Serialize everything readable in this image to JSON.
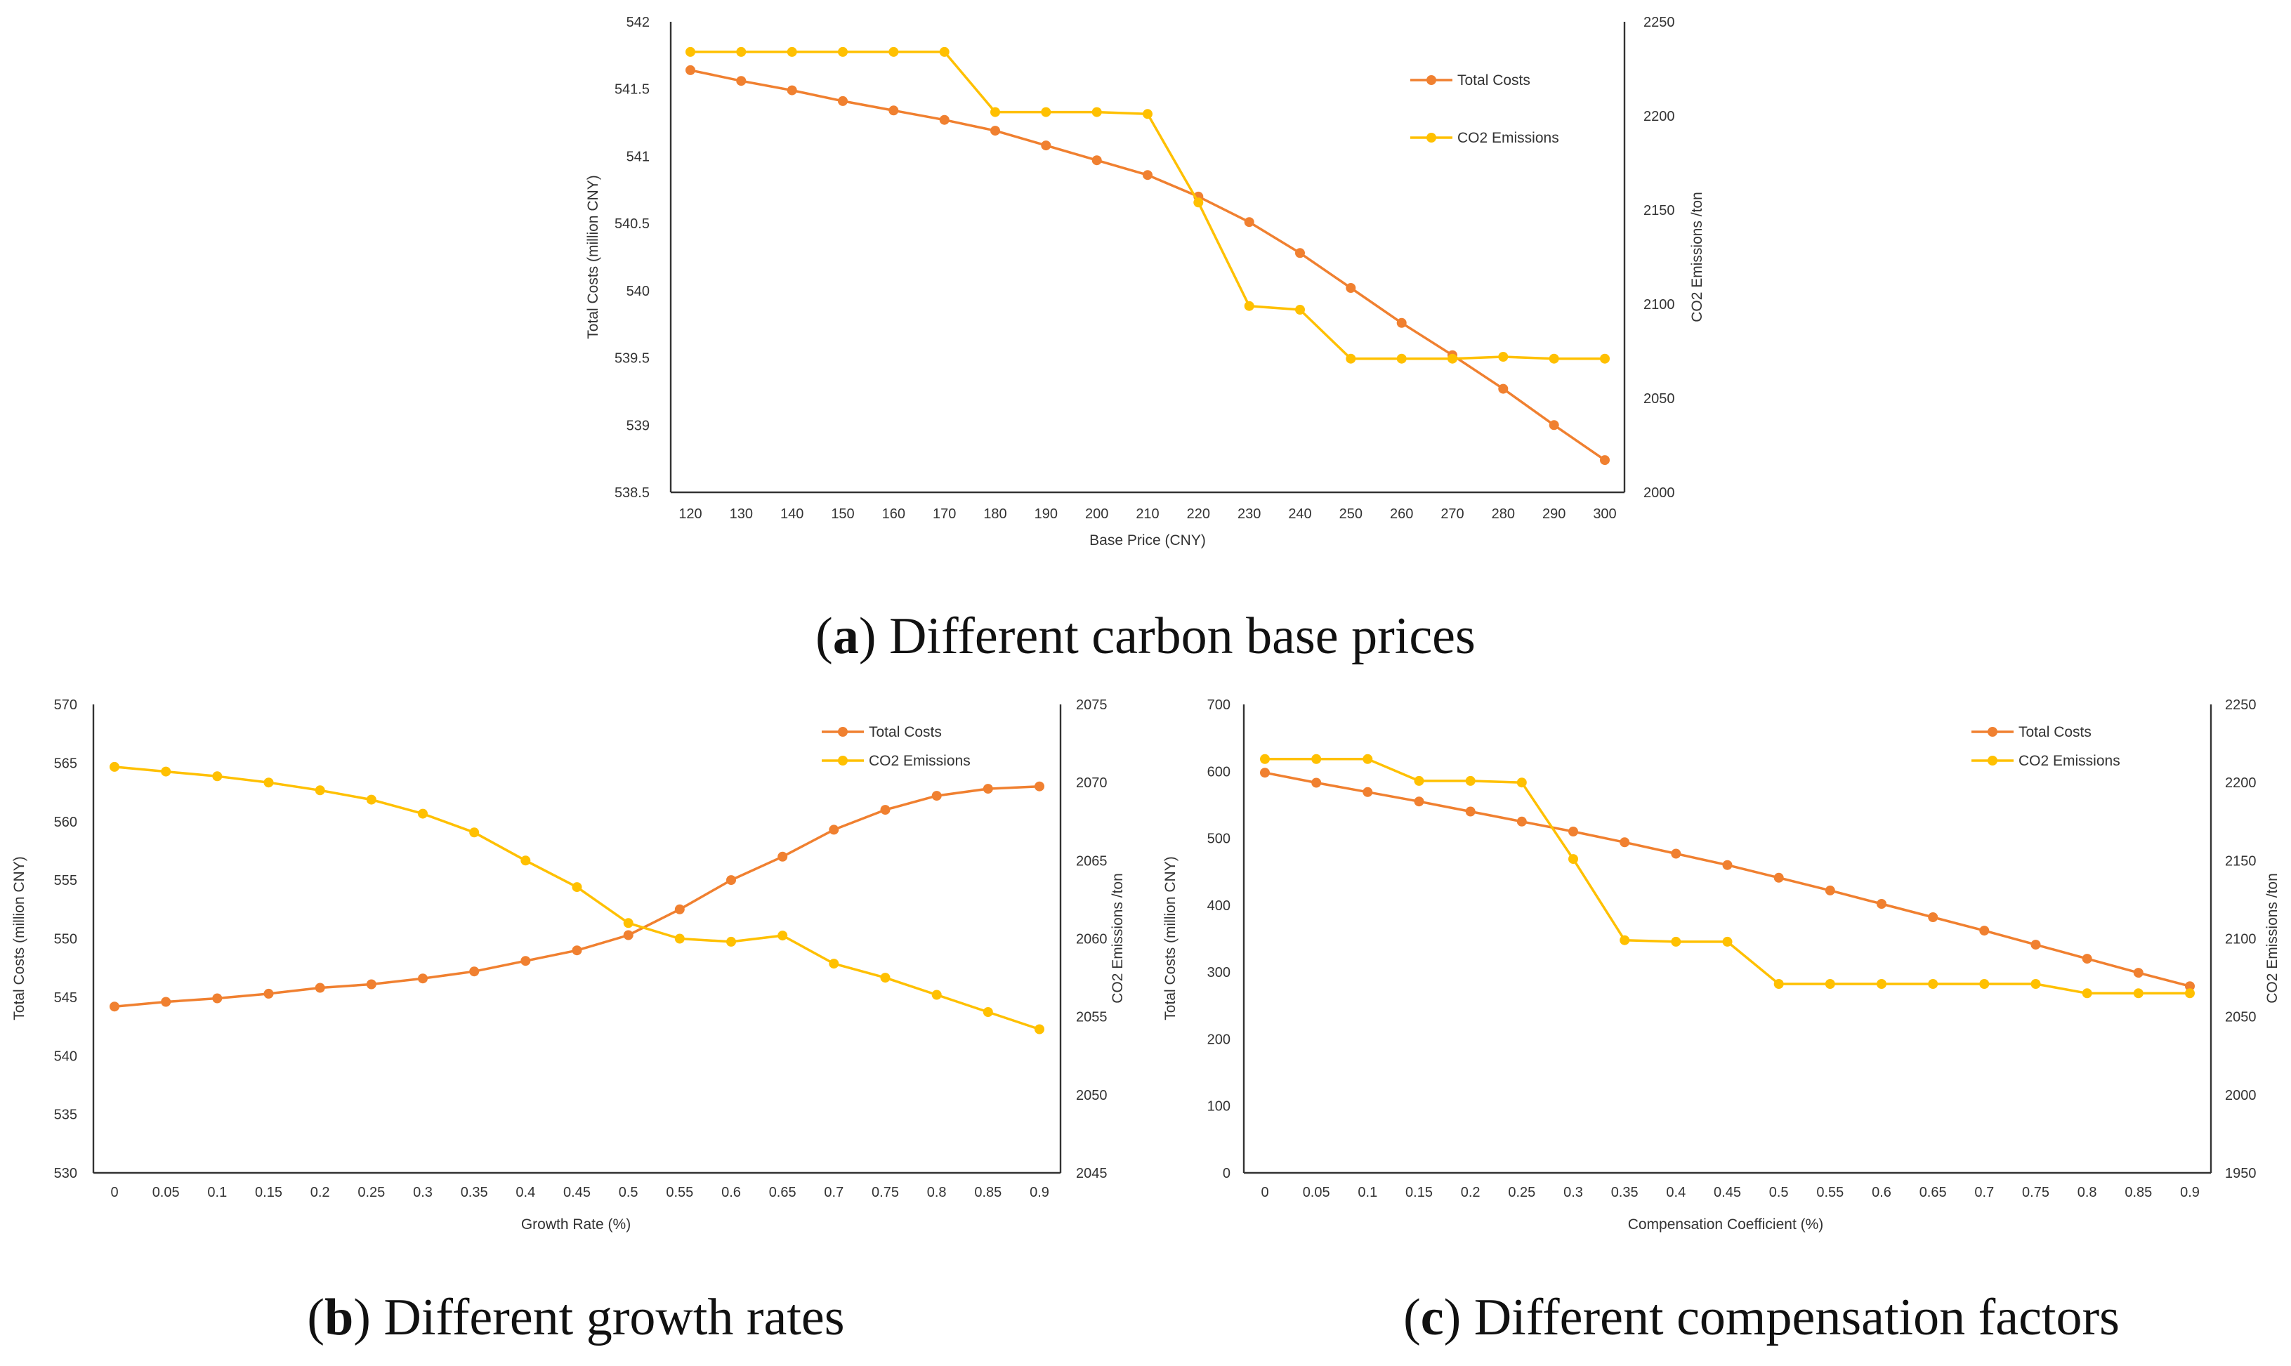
{
  "colors": {
    "total_costs": "#F08030",
    "co2": "#FFC000",
    "axis": "#333333"
  },
  "chart_data": [
    {
      "type": "line",
      "panel_id": "a",
      "caption": {
        "open": "(",
        "letter": "a",
        "close": ")",
        "text": " Different carbon base prices"
      },
      "title": "",
      "xlabel": "Base Price (CNY)",
      "ylabel_left": "Total Costs (million CNY)",
      "ylabel_right": "CO2 Emissions /ton",
      "categories": [
        "120",
        "130",
        "140",
        "150",
        "160",
        "170",
        "180",
        "190",
        "200",
        "210",
        "220",
        "230",
        "240",
        "250",
        "260",
        "270",
        "280",
        "290",
        "300"
      ],
      "ylim_left": [
        538.5,
        542
      ],
      "yticks_left": [
        "538.5",
        "539",
        "539.5",
        "540",
        "540.5",
        "541",
        "541.5",
        "542"
      ],
      "ylim_right": [
        2000,
        2250
      ],
      "yticks_right": [
        "2000",
        "2050",
        "2100",
        "2150",
        "2200",
        "2250"
      ],
      "legend_position": "top-right",
      "series": [
        {
          "name": "Total Costs",
          "axis": "left",
          "color": "#F08030",
          "values": [
            541.64,
            541.56,
            541.49,
            541.41,
            541.34,
            541.27,
            541.19,
            541.08,
            540.97,
            540.86,
            540.7,
            540.51,
            540.28,
            540.02,
            539.76,
            539.52,
            539.27,
            539.0,
            538.74
          ]
        },
        {
          "name": "CO2 Emissions",
          "axis": "right",
          "color": "#FFC000",
          "values": [
            2234,
            2234,
            2234,
            2234,
            2234,
            2234,
            2202,
            2202,
            2202,
            2201,
            2154,
            2099,
            2097,
            2071,
            2071,
            2071,
            2072,
            2071,
            2071
          ]
        }
      ]
    },
    {
      "type": "line",
      "panel_id": "b",
      "caption": {
        "open": "(",
        "letter": "b",
        "close": ")",
        "text": " Different growth rates"
      },
      "title": "",
      "xlabel": "Growth Rate (%)",
      "ylabel_left": "Total Costs (million CNY)",
      "ylabel_right": "CO2 Emissions /ton",
      "categories": [
        "0",
        "0.05",
        "0.1",
        "0.15",
        "0.2",
        "0.25",
        "0.3",
        "0.35",
        "0.4",
        "0.45",
        "0.5",
        "0.55",
        "0.6",
        "0.65",
        "0.7",
        "0.75",
        "0.8",
        "0.85",
        "0.9"
      ],
      "ylim_left": [
        530,
        570
      ],
      "yticks_left": [
        "530",
        "535",
        "540",
        "545",
        "550",
        "555",
        "560",
        "565",
        "570"
      ],
      "ylim_right": [
        2045,
        2075
      ],
      "yticks_right": [
        "2045",
        "2050",
        "2055",
        "2060",
        "2065",
        "2070",
        "2075"
      ],
      "legend_position": "top-right",
      "series": [
        {
          "name": "Total Costs",
          "axis": "left",
          "color": "#F08030",
          "values": [
            544.2,
            544.6,
            544.9,
            545.3,
            545.8,
            546.1,
            546.6,
            547.2,
            548.1,
            549.0,
            550.3,
            552.5,
            555.0,
            557.0,
            559.3,
            561.0,
            562.2,
            562.8,
            563.0
          ]
        },
        {
          "name": "CO2 Emissions",
          "axis": "right",
          "color": "#FFC000",
          "values": [
            2071.0,
            2070.7,
            2070.4,
            2070.0,
            2069.5,
            2068.9,
            2068.0,
            2066.8,
            2065.0,
            2063.3,
            2061.0,
            2060.0,
            2059.8,
            2060.2,
            2058.4,
            2057.5,
            2056.4,
            2055.3,
            2054.2
          ]
        }
      ]
    },
    {
      "type": "line",
      "panel_id": "c",
      "caption": {
        "open": "(",
        "letter": "c",
        "close": ")",
        "text": " Different compensation factors"
      },
      "title": "",
      "xlabel": "Compensation Coefficient (%)",
      "ylabel_left": "Total Costs (million CNY)",
      "ylabel_right": "CO2 Emissions /ton",
      "categories": [
        "0",
        "0.05",
        "0.1",
        "0.15",
        "0.2",
        "0.25",
        "0.3",
        "0.35",
        "0.4",
        "0.45",
        "0.5",
        "0.55",
        "0.6",
        "0.65",
        "0.7",
        "0.75",
        "0.8",
        "0.85",
        "0.9"
      ],
      "ylim_left": [
        0,
        700
      ],
      "yticks_left": [
        "0",
        "100",
        "200",
        "300",
        "400",
        "500",
        "600",
        "700"
      ],
      "ylim_right": [
        1950,
        2250
      ],
      "yticks_right": [
        "1950",
        "2000",
        "2050",
        "2100",
        "2150",
        "2200",
        "2250"
      ],
      "legend_position": "top-right",
      "series": [
        {
          "name": "Total Costs",
          "axis": "left",
          "color": "#F08030",
          "values": [
            598,
            583,
            569,
            555,
            540,
            525,
            510,
            494,
            477,
            460,
            441,
            422,
            402,
            382,
            362,
            341,
            320,
            299,
            279
          ]
        },
        {
          "name": "CO2 Emissions",
          "axis": "right",
          "color": "#FFC000",
          "values": [
            2215,
            2215,
            2215,
            2201,
            2201,
            2200,
            2151,
            2099,
            2098,
            2098,
            2071,
            2071,
            2071,
            2071,
            2071,
            2071,
            2065,
            2065,
            2065
          ]
        }
      ]
    }
  ]
}
